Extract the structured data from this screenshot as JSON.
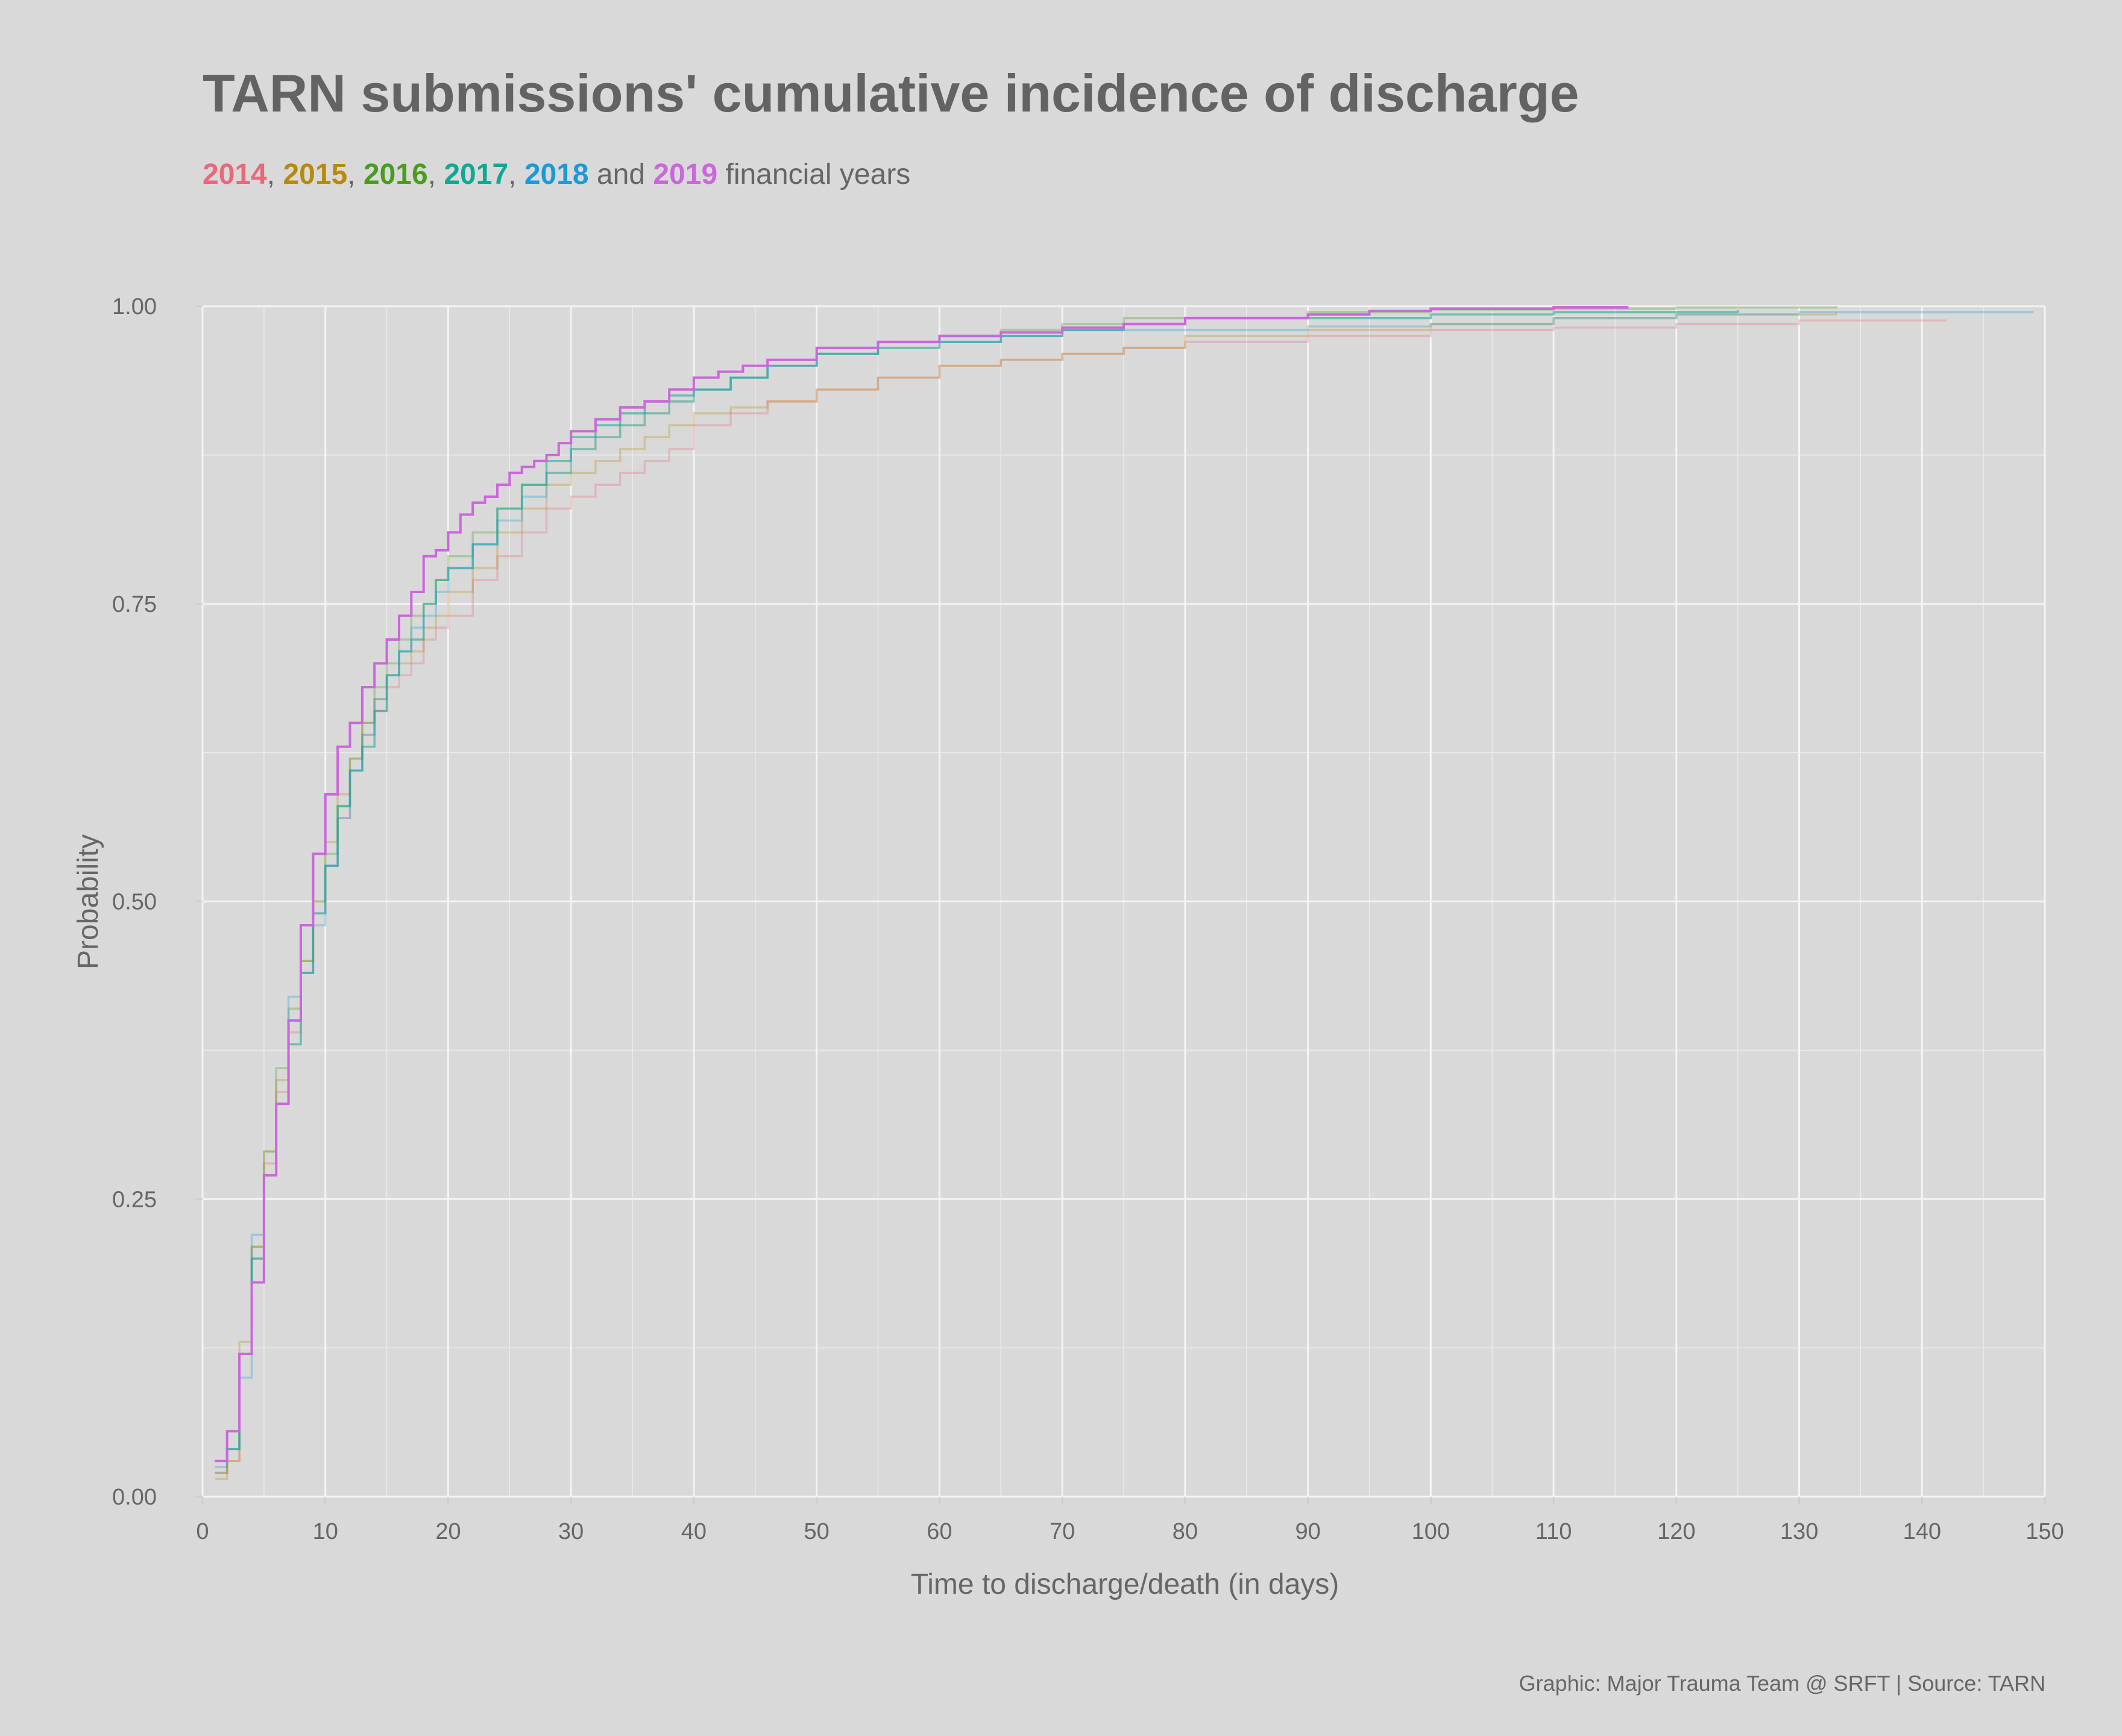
{
  "title": "TARN submissions' cumulative incidence of discharge",
  "subtitle": {
    "years": [
      {
        "label": "2014",
        "color": "#e8697a"
      },
      {
        "label": "2015",
        "color": "#b88a0c"
      },
      {
        "label": "2016",
        "color": "#4a9c1e"
      },
      {
        "label": "2017",
        "color": "#10a894"
      },
      {
        "label": "2018",
        "color": "#1a9ad8"
      },
      {
        "label": "2019",
        "color": "#cc66dd"
      }
    ],
    "sep1": ", ",
    "sep2": ", ",
    "sep3": ", ",
    "sep4": ", ",
    "and_text": " and ",
    "suffix": " financial years"
  },
  "caption": "Graphic: Major Trauma Team @ SRFT | Source: TARN",
  "chart_data": {
    "type": "line",
    "step": true,
    "xlabel": "Time to discharge/death (in days)",
    "ylabel": "Probability",
    "xlim": [
      0,
      150
    ],
    "ylim": [
      0,
      1
    ],
    "xticks": [
      0,
      10,
      20,
      30,
      40,
      50,
      60,
      70,
      80,
      90,
      100,
      110,
      120,
      130,
      140,
      150
    ],
    "yticks": [
      0.0,
      0.25,
      0.5,
      0.75,
      1.0
    ],
    "ytick_labels": [
      "0.00",
      "0.25",
      "0.50",
      "0.75",
      "1.00"
    ],
    "grid": true,
    "series": [
      {
        "name": "2014",
        "color": "#e8697a",
        "opacity": 0.3,
        "x": [
          1,
          2,
          3,
          4,
          5,
          6,
          7,
          8,
          9,
          10,
          11,
          12,
          13,
          14,
          15,
          16,
          17,
          18,
          19,
          20,
          22,
          24,
          26,
          28,
          30,
          32,
          34,
          36,
          38,
          40,
          43,
          46,
          50,
          55,
          60,
          65,
          70,
          75,
          80,
          90,
          100,
          110,
          120,
          130,
          142
        ],
        "y": [
          0.02,
          0.03,
          0.12,
          0.2,
          0.28,
          0.34,
          0.39,
          0.44,
          0.49,
          0.53,
          0.57,
          0.61,
          0.64,
          0.66,
          0.68,
          0.69,
          0.7,
          0.72,
          0.73,
          0.74,
          0.77,
          0.79,
          0.81,
          0.83,
          0.84,
          0.85,
          0.86,
          0.87,
          0.88,
          0.9,
          0.91,
          0.92,
          0.93,
          0.94,
          0.95,
          0.955,
          0.96,
          0.965,
          0.97,
          0.975,
          0.98,
          0.982,
          0.985,
          0.988,
          0.988
        ]
      },
      {
        "name": "2015",
        "color": "#b88a0c",
        "opacity": 0.3,
        "x": [
          1,
          2,
          3,
          4,
          5,
          6,
          7,
          8,
          9,
          10,
          11,
          12,
          13,
          14,
          15,
          16,
          17,
          18,
          19,
          20,
          22,
          24,
          26,
          28,
          30,
          32,
          34,
          36,
          38,
          40,
          43,
          46,
          50,
          55,
          60,
          65,
          70,
          75,
          80,
          90,
          100,
          110,
          120,
          133
        ],
        "y": [
          0.015,
          0.03,
          0.13,
          0.21,
          0.29,
          0.35,
          0.4,
          0.45,
          0.5,
          0.55,
          0.59,
          0.62,
          0.65,
          0.67,
          0.69,
          0.7,
          0.71,
          0.73,
          0.74,
          0.76,
          0.78,
          0.81,
          0.83,
          0.85,
          0.86,
          0.87,
          0.88,
          0.89,
          0.9,
          0.91,
          0.915,
          0.92,
          0.93,
          0.94,
          0.95,
          0.955,
          0.96,
          0.965,
          0.975,
          0.98,
          0.985,
          0.99,
          0.993,
          0.995
        ]
      },
      {
        "name": "2016",
        "color": "#4a9c1e",
        "opacity": 0.3,
        "x": [
          1,
          2,
          3,
          4,
          5,
          6,
          7,
          8,
          9,
          10,
          11,
          12,
          13,
          14,
          15,
          16,
          17,
          18,
          19,
          20,
          22,
          24,
          26,
          28,
          30,
          32,
          34,
          36,
          38,
          40,
          43,
          46,
          50,
          55,
          60,
          65,
          70,
          75,
          80,
          90,
          100,
          110,
          120,
          133
        ],
        "y": [
          0.02,
          0.04,
          0.12,
          0.21,
          0.29,
          0.36,
          0.41,
          0.45,
          0.5,
          0.54,
          0.58,
          0.62,
          0.65,
          0.68,
          0.7,
          0.72,
          0.74,
          0.75,
          0.77,
          0.79,
          0.81,
          0.83,
          0.85,
          0.86,
          0.88,
          0.89,
          0.9,
          0.91,
          0.92,
          0.93,
          0.94,
          0.95,
          0.96,
          0.97,
          0.975,
          0.98,
          0.985,
          0.99,
          0.99,
          0.995,
          0.997,
          0.998,
          0.999,
          1.0
        ]
      },
      {
        "name": "2017",
        "color": "#10a894",
        "opacity": 0.55,
        "x": [
          1,
          2,
          3,
          4,
          5,
          6,
          7,
          8,
          9,
          10,
          11,
          12,
          13,
          14,
          15,
          16,
          17,
          18,
          19,
          20,
          22,
          24,
          26,
          28,
          30,
          32,
          34,
          36,
          38,
          40,
          43,
          46,
          50,
          55,
          60,
          65,
          70,
          75,
          80,
          90,
          100,
          110,
          125
        ],
        "y": [
          0.03,
          0.04,
          0.12,
          0.2,
          0.27,
          0.33,
          0.38,
          0.44,
          0.49,
          0.53,
          0.58,
          0.61,
          0.63,
          0.66,
          0.69,
          0.71,
          0.72,
          0.75,
          0.77,
          0.78,
          0.8,
          0.83,
          0.85,
          0.87,
          0.89,
          0.9,
          0.91,
          0.92,
          0.925,
          0.93,
          0.94,
          0.95,
          0.96,
          0.965,
          0.97,
          0.975,
          0.98,
          0.985,
          0.99,
          0.99,
          0.993,
          0.995,
          0.997
        ]
      },
      {
        "name": "2018",
        "color": "#1a9ad8",
        "opacity": 0.3,
        "x": [
          1,
          2,
          3,
          4,
          5,
          6,
          7,
          8,
          9,
          10,
          11,
          12,
          13,
          14,
          15,
          16,
          17,
          18,
          19,
          20,
          22,
          24,
          26,
          28,
          30,
          32,
          34,
          36,
          38,
          40,
          43,
          46,
          50,
          55,
          60,
          65,
          70,
          75,
          80,
          90,
          100,
          110,
          120,
          130,
          149
        ],
        "y": [
          0.025,
          0.04,
          0.1,
          0.22,
          0.27,
          0.33,
          0.42,
          0.44,
          0.48,
          0.53,
          0.57,
          0.61,
          0.64,
          0.67,
          0.69,
          0.71,
          0.73,
          0.74,
          0.76,
          0.78,
          0.8,
          0.82,
          0.84,
          0.86,
          0.88,
          0.89,
          0.9,
          0.91,
          0.92,
          0.93,
          0.94,
          0.95,
          0.96,
          0.97,
          0.97,
          0.975,
          0.98,
          0.98,
          0.98,
          0.983,
          0.985,
          0.99,
          0.993,
          0.995,
          0.996
        ]
      },
      {
        "name": "2019",
        "color": "#cc66dd",
        "opacity": 1.0,
        "x": [
          1,
          2,
          3,
          4,
          5,
          6,
          7,
          8,
          9,
          10,
          11,
          12,
          13,
          14,
          15,
          16,
          17,
          18,
          19,
          20,
          21,
          22,
          23,
          24,
          25,
          26,
          27,
          28,
          29,
          30,
          32,
          34,
          36,
          38,
          40,
          42,
          44,
          46,
          50,
          55,
          60,
          65,
          70,
          75,
          80,
          90,
          95,
          100,
          110,
          116
        ],
        "y": [
          0.03,
          0.055,
          0.12,
          0.18,
          0.27,
          0.33,
          0.4,
          0.48,
          0.54,
          0.59,
          0.63,
          0.65,
          0.68,
          0.7,
          0.72,
          0.74,
          0.76,
          0.79,
          0.795,
          0.81,
          0.825,
          0.835,
          0.84,
          0.85,
          0.86,
          0.865,
          0.87,
          0.875,
          0.885,
          0.895,
          0.905,
          0.915,
          0.92,
          0.93,
          0.94,
          0.945,
          0.95,
          0.955,
          0.965,
          0.97,
          0.975,
          0.978,
          0.982,
          0.985,
          0.99,
          0.993,
          0.996,
          0.998,
          0.999,
          1.0
        ]
      }
    ]
  }
}
